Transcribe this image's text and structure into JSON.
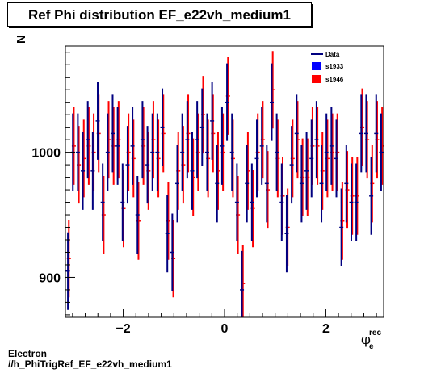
{
  "title": "Ref Phi distribution EF_e22vh_medium1",
  "footer": {
    "line1": "Electron",
    "line2": "//h_PhiTrigRef_EF_e22vh_medium1"
  },
  "colors": {
    "data": "#000080",
    "s1933": "#0000ff",
    "s1946": "#ff0000"
  },
  "chart_data": {
    "type": "scatter",
    "ylabel": "N",
    "xlabel_main": "φ",
    "xlabel_sub": "e",
    "xlabel_sup": "rec",
    "xlim": [
      -3.1416,
      3.1416
    ],
    "ylim": [
      868,
      1085
    ],
    "xticks": [
      -2,
      0,
      2
    ],
    "yticks": [
      900,
      1000
    ],
    "legend_position": "top-right",
    "legend": [
      "Data",
      "s1933",
      "s1946"
    ],
    "n_bins": 64,
    "series": [
      {
        "name": "Data",
        "values": [
          905,
          1000,
          1000,
          985,
          1010,
          985,
          1025,
          960,
          1000,
          1015,
          1005,
          960,
          990,
          1005,
          950,
          1010,
          990,
          1000,
          1000,
          1020,
          935,
          920,
          975,
          1000,
          1010,
          985,
          1010,
          1020,
          1000,
          1025,
          975,
          1005,
          1040,
          1000,
          960,
          890,
          975,
          960,
          995,
          1005,
          975,
          1040,
          1000,
          960,
          935,
          990,
          1015,
          975,
          985,
          995,
          1010,
          975,
          1000,
          1005,
          995,
          940,
          975,
          960,
          960,
          1015,
          1015,
          965,
          1015,
          1000
        ],
        "errors": [
          31,
          31,
          31,
          31,
          31,
          31,
          31,
          31,
          31,
          31,
          31,
          31,
          31,
          31,
          31,
          31,
          31,
          31,
          31,
          31,
          31,
          31,
          31,
          31,
          31,
          31,
          31,
          31,
          31,
          31,
          31,
          31,
          31,
          31,
          31,
          31,
          31,
          31,
          31,
          31,
          31,
          31,
          31,
          31,
          31,
          31,
          31,
          31,
          31,
          31,
          31,
          31,
          31,
          31,
          31,
          31,
          31,
          31,
          31,
          31,
          31,
          31,
          31,
          31
        ]
      },
      {
        "name": "s1946",
        "values": [
          915,
          1005,
          990,
          995,
          1005,
          1000,
          1015,
          950,
          1010,
          1005,
          1010,
          955,
          1000,
          995,
          945,
          1005,
          985,
          1010,
          995,
          1015,
          945,
          915,
          985,
          990,
          1015,
          980,
          1000,
          1030,
          995,
          1015,
          985,
          1000,
          1045,
          995,
          950,
          895,
          985,
          955,
          1000,
          1010,
          970,
          1050,
          995,
          965,
          940,
          995,
          1010,
          980,
          980,
          1005,
          1005,
          985,
          995,
          1000,
          1000,
          945,
          970,
          965,
          965,
          1020,
          1010,
          975,
          1010,
          1005
        ],
        "errors": [
          31,
          31,
          31,
          31,
          31,
          31,
          31,
          31,
          31,
          31,
          31,
          31,
          31,
          31,
          31,
          31,
          31,
          31,
          31,
          31,
          31,
          31,
          31,
          31,
          31,
          31,
          31,
          31,
          31,
          31,
          31,
          31,
          31,
          31,
          31,
          31,
          31,
          31,
          31,
          31,
          31,
          31,
          31,
          31,
          31,
          31,
          31,
          31,
          31,
          31,
          31,
          31,
          31,
          31,
          31,
          31,
          31,
          31,
          31,
          31,
          31,
          31,
          31,
          31
        ]
      }
    ]
  }
}
